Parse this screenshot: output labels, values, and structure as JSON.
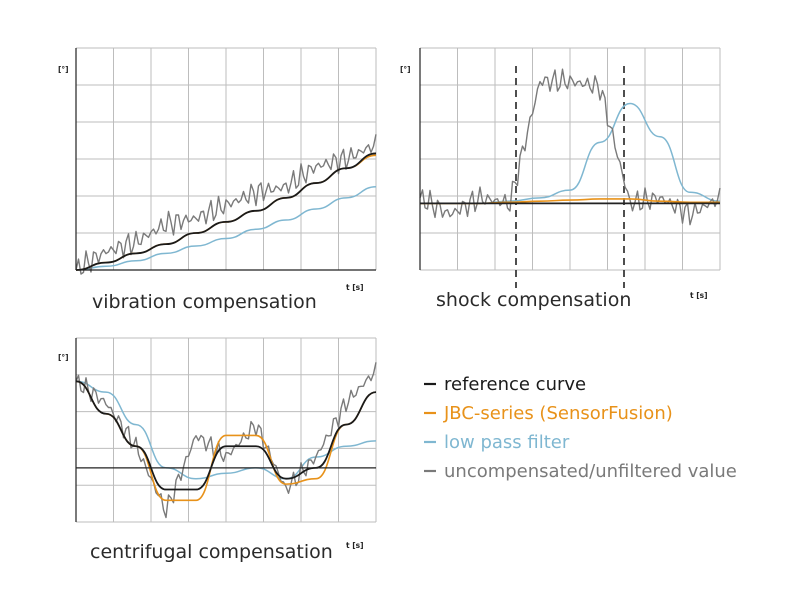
{
  "colors": {
    "reference": "#1a1a1a",
    "jbc": "#e8921a",
    "lowpass": "#7fb7d1",
    "raw": "#7a7a7a",
    "grid": "#bdbdbd"
  },
  "legend": [
    {
      "label": "reference curve",
      "key": "reference"
    },
    {
      "label": "JBC-series (SensorFusion)",
      "key": "jbc"
    },
    {
      "label": "low pass filter",
      "key": "lowpass"
    },
    {
      "label": "uncompensated/unfiltered value",
      "key": "raw"
    }
  ],
  "chart_data": [
    {
      "id": "vibration",
      "type": "line",
      "title": "vibration compensation",
      "ylabel": "[°]",
      "xlabel": "t [s]",
      "grid": true,
      "x": [
        0,
        0.1,
        0.2,
        0.3,
        0.4,
        0.5,
        0.6,
        0.7,
        0.8,
        0.9,
        1.0
      ],
      "series": [
        {
          "name": "reference curve",
          "key": "reference",
          "values": [
            0.0,
            0.04,
            0.09,
            0.14,
            0.2,
            0.26,
            0.32,
            0.39,
            0.47,
            0.55,
            0.63
          ]
        },
        {
          "name": "JBC-series (SensorFusion)",
          "key": "jbc",
          "values": [
            0.0,
            0.04,
            0.09,
            0.14,
            0.2,
            0.26,
            0.32,
            0.39,
            0.47,
            0.55,
            0.62
          ]
        },
        {
          "name": "low pass filter",
          "key": "lowpass",
          "values": [
            0.0,
            0.02,
            0.05,
            0.09,
            0.13,
            0.17,
            0.22,
            0.27,
            0.33,
            0.39,
            0.45
          ]
        },
        {
          "name": "uncompensated/unfiltered value",
          "key": "raw",
          "values": [
            0.0,
            0.1,
            0.15,
            0.25,
            0.28,
            0.35,
            0.42,
            0.45,
            0.56,
            0.6,
            0.68
          ]
        }
      ],
      "ylim": [
        0,
        1.2
      ]
    },
    {
      "id": "shock",
      "type": "line",
      "title": "shock compensation",
      "ylabel": "[°]",
      "xlabel": "t [s]",
      "grid": true,
      "x": [
        0,
        0.1,
        0.2,
        0.3,
        0.4,
        0.5,
        0.6,
        0.7,
        0.8,
        0.9,
        1.0
      ],
      "shock_interval": [
        0.32,
        0.68
      ],
      "series": [
        {
          "name": "reference curve",
          "key": "reference",
          "values": [
            0,
            0,
            0,
            0,
            0,
            0,
            0,
            0,
            0,
            0,
            0
          ]
        },
        {
          "name": "JBC-series (SensorFusion)",
          "key": "jbc",
          "values": [
            0,
            0,
            0,
            0.01,
            0.02,
            0.03,
            0.04,
            0.04,
            0.02,
            0.01,
            0.01
          ]
        },
        {
          "name": "low pass filter",
          "key": "lowpass",
          "values": [
            0,
            0,
            0,
            0.02,
            0.05,
            0.12,
            0.55,
            0.9,
            0.6,
            0.1,
            0.02
          ]
        },
        {
          "name": "uncompensated/unfiltered value",
          "key": "raw",
          "values": [
            0.05,
            -0.1,
            0.05,
            0.0,
            1.1,
            1.1,
            1.05,
            0.0,
            0.05,
            -0.1,
            0.05
          ]
        }
      ],
      "ylim": [
        -0.6,
        1.4
      ]
    },
    {
      "id": "centrifugal",
      "type": "line",
      "title": "centrifugal compensation",
      "ylabel": "[°]",
      "xlabel": "t [s]",
      "grid": true,
      "x": [
        0,
        0.1,
        0.2,
        0.3,
        0.4,
        0.5,
        0.6,
        0.7,
        0.8,
        0.9,
        1.0
      ],
      "series": [
        {
          "name": "reference curve",
          "key": "reference",
          "values": [
            0.8,
            0.5,
            0.2,
            -0.2,
            -0.2,
            0.2,
            0.2,
            -0.1,
            0.0,
            0.4,
            0.7
          ]
        },
        {
          "name": "JBC-series (SensorFusion)",
          "key": "jbc",
          "values": [
            0.8,
            0.5,
            0.2,
            -0.3,
            -0.3,
            0.3,
            0.3,
            -0.15,
            -0.1,
            0.4,
            0.7
          ]
        },
        {
          "name": "low pass filter",
          "key": "lowpass",
          "values": [
            0.8,
            0.7,
            0.4,
            0.0,
            -0.1,
            -0.05,
            0.0,
            -0.1,
            0.1,
            0.2,
            0.25
          ]
        },
        {
          "name": "uncompensated/unfiltered value",
          "key": "raw",
          "values": [
            0.8,
            0.6,
            0.2,
            -0.4,
            0.3,
            0.1,
            0.4,
            -0.2,
            0.1,
            0.6,
            0.9
          ]
        }
      ],
      "ylim": [
        -0.5,
        1.2
      ]
    }
  ]
}
